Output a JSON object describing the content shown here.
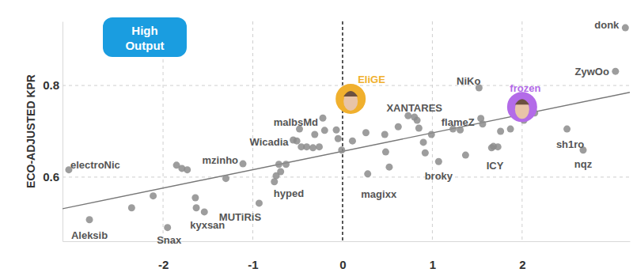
{
  "chart_data": {
    "type": "scatter",
    "ylabel": "ECO-ADJUSTED KPR",
    "annotation": "High Output",
    "x": [
      3.15,
      3.04,
      1.52,
      2.0,
      0.09,
      0.8,
      1.54,
      2.5,
      2.68,
      1.68,
      1.07,
      0.28,
      -0.22,
      -0.55,
      -1.11,
      -3.05,
      -0.74,
      -0.93,
      -1.54,
      -1.95,
      -2.82,
      -2.11,
      -2.35,
      -1.85,
      -1.79,
      -1.73,
      -1.64,
      -1.63,
      -1.3,
      -0.76,
      -0.71,
      -0.69,
      -0.63,
      -0.48,
      -0.46,
      -0.4,
      -0.33,
      -0.31,
      -0.26,
      -0.2,
      -0.07,
      -0.05,
      -0.01,
      0.11,
      0.48,
      0.47,
      0.52,
      0.62,
      0.85,
      0.9,
      0.92,
      0.99,
      1.23,
      1.31,
      1.37,
      1.56,
      1.66,
      1.73,
      1.76,
      1.87,
      2.02,
      2.14,
      0.73,
      0.83,
      0.26,
      -0.51
    ],
    "y": [
      0.926,
      0.831,
      0.795,
      0.753,
      0.771,
      0.731,
      0.728,
      0.705,
      0.659,
      0.667,
      0.634,
      0.607,
      0.729,
      0.681,
      0.629,
      0.616,
      0.603,
      0.543,
      0.524,
      0.49,
      0.507,
      0.559,
      0.533,
      0.626,
      0.619,
      0.616,
      0.555,
      0.533,
      0.597,
      0.59,
      0.628,
      0.612,
      0.628,
      0.705,
      0.666,
      0.666,
      0.664,
      0.693,
      0.666,
      0.702,
      0.703,
      0.684,
      0.659,
      0.679,
      0.655,
      0.693,
      0.622,
      0.71,
      0.707,
      0.676,
      0.653,
      0.693,
      0.705,
      0.703,
      0.648,
      0.716,
      0.664,
      0.666,
      0.7,
      0.705,
      0.724,
      0.74,
      0.734,
      0.724,
      0.697,
      0.679
    ],
    "labels": [
      "donk",
      "ZywOo",
      "NiKo",
      "frozen",
      "EliGE",
      "XANTARES",
      "flameZ",
      "sh1ro",
      "nqz",
      "ICY",
      "broky",
      "magixx",
      "malbsMd",
      "Wicadia",
      "mzinho",
      "electroNic",
      "hyped",
      "MUTiRiS",
      "kyxsan",
      "Snax",
      "Aleksib",
      null,
      null,
      null,
      null,
      null,
      null,
      null,
      null,
      null,
      null,
      null,
      null,
      null,
      null,
      null,
      null,
      null,
      null,
      null,
      null,
      null,
      null,
      null,
      null,
      null,
      null,
      null,
      null,
      null,
      null,
      null,
      null,
      null,
      null,
      null,
      null,
      null,
      null,
      null,
      null,
      null,
      null,
      null,
      null,
      null
    ],
    "color": "#8c8c8c",
    "colors": [
      "#8c8c8c",
      "#8c8c8c",
      "#8c8c8c",
      "#b36be8",
      "#f0b02e",
      "#8c8c8c",
      "#8c8c8c",
      "#8c8c8c",
      "#8c8c8c",
      "#8c8c8c",
      "#8c8c8c",
      "#8c8c8c",
      "#8c8c8c",
      "#8c8c8c",
      "#8c8c8c",
      "#8c8c8c",
      "#8c8c8c",
      "#8c8c8c",
      "#8c8c8c",
      "#8c8c8c",
      "#8c8c8c",
      "#8c8c8c",
      "#8c8c8c",
      "#8c8c8c",
      "#8c8c8c",
      "#8c8c8c",
      "#8c8c8c",
      "#8c8c8c",
      "#8c8c8c",
      "#8c8c8c",
      "#8c8c8c",
      "#8c8c8c",
      "#8c8c8c",
      "#8c8c8c",
      "#8c8c8c",
      "#8c8c8c",
      "#8c8c8c",
      "#8c8c8c",
      "#8c8c8c",
      "#8c8c8c",
      "#8c8c8c",
      "#8c8c8c",
      "#8c8c8c",
      "#8c8c8c",
      "#8c8c8c",
      "#8c8c8c",
      "#8c8c8c",
      "#8c8c8c",
      "#8c8c8c",
      "#8c8c8c",
      "#8c8c8c",
      "#8c8c8c",
      "#8c8c8c",
      "#8c8c8c",
      "#8c8c8c",
      "#8c8c8c",
      "#8c8c8c",
      "#8c8c8c",
      "#8c8c8c",
      "#8c8c8c",
      "#8c8c8c",
      "#8c8c8c",
      "#8c8c8c",
      "#8c8c8c",
      "#8c8c8c",
      "#8c8c8c"
    ],
    "xlim": [
      -3.12,
      3.2
    ],
    "ylim": [
      0.46,
      0.94
    ],
    "xticks": [
      -2,
      -1,
      0,
      1,
      2
    ],
    "yticks": [
      0.6,
      0.8
    ],
    "grid": true,
    "trend": {
      "x": [
        -3.12,
        3.2
      ],
      "y": [
        0.531,
        0.785
      ]
    }
  }
}
